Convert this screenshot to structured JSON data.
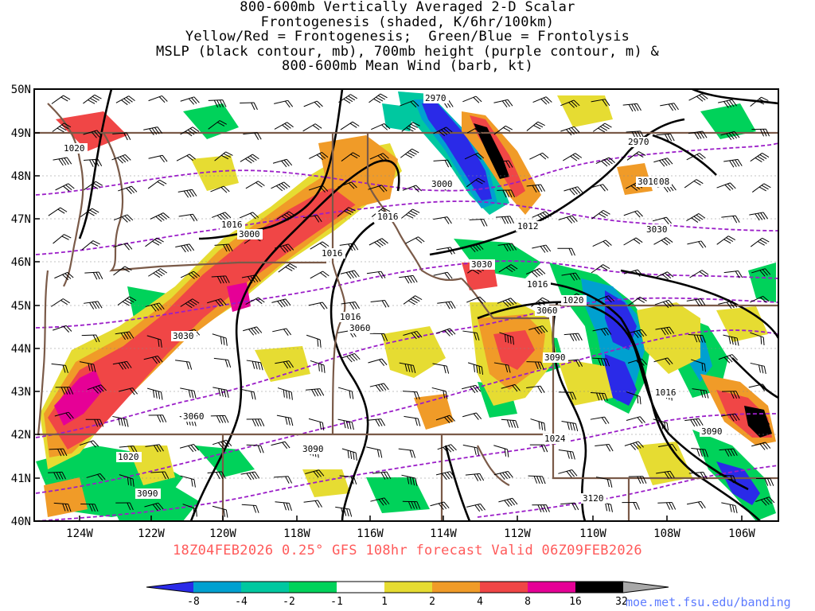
{
  "title_lines": [
    "800-600mb Vertically Averaged 2-D Scalar",
    "Frontogenesis (shaded, K/6hr/100km)",
    "Yellow/Red = Frontogenesis;  Green/Blue = Frontolysis",
    "MSLP (black contour, mb), 700mb height (purple contour, m) &",
    "800-600mb Mean Wind (barb, kt)"
  ],
  "lat_labels": [
    "50N",
    "49N",
    "48N",
    "47N",
    "46N",
    "45N",
    "44N",
    "43N",
    "42N",
    "41N",
    "40N"
  ],
  "lon_labels": [
    "124W",
    "122W",
    "120W",
    "118W",
    "116W",
    "114W",
    "112W",
    "110W",
    "108W",
    "106W"
  ],
  "contour_labels": [
    "2970",
    "2970",
    "1020",
    "3000",
    "1016",
    "1016",
    "3000",
    "1016",
    "1012",
    "3030",
    "3010",
    "08",
    "1016",
    "3030",
    "1020",
    "3060",
    "1016",
    "3060",
    "3030",
    "3090",
    "1016",
    "3060",
    "3090",
    "1024",
    "3090",
    "1020",
    "3090",
    "3120"
  ],
  "colorbar_labels": [
    "-8",
    "-4",
    "-2",
    "-1",
    "1",
    "2",
    "4",
    "8",
    "16",
    "32"
  ],
  "colorbar_colors": [
    "#2a2ae8",
    "#00a0d0",
    "#00c8a0",
    "#00d25a",
    "#1ad000",
    "#ffffff",
    "#e6dc32",
    "#f09b28",
    "#f04646",
    "#e60096",
    "#000000",
    "#a8a8a8"
  ],
  "footer": "18Z04FEB2026 0.25° GFS 108hr forecast Valid 06Z09FEB2026",
  "credit": "moe.met.fsu.edu/banding"
}
